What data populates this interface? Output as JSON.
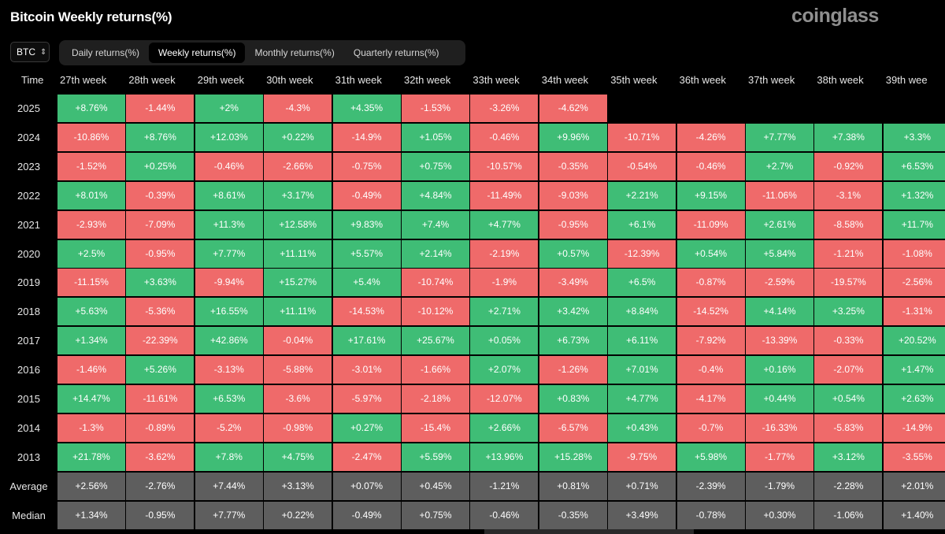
{
  "title": "Bitcoin Weekly returns(%)",
  "logo": "coinglass",
  "coin_select": {
    "value": "BTC",
    "icon": "updown-chevron-icon"
  },
  "tabs": [
    {
      "label": "Daily returns(%)",
      "active": false
    },
    {
      "label": "Weekly returns(%)",
      "active": true
    },
    {
      "label": "Monthly returns(%)",
      "active": false
    },
    {
      "label": "Quarterly returns(%)",
      "active": false
    }
  ],
  "colors": {
    "positive": "#3fbd76",
    "negative": "#ef6a6a",
    "summary": "#5e5e5e",
    "background": "#000000"
  },
  "table": {
    "time_header": "Time",
    "columns": [
      "27th week",
      "28th week",
      "29th week",
      "30th week",
      "31th week",
      "32th week",
      "33th week",
      "34th week",
      "35th week",
      "36th week",
      "37th week",
      "38th week",
      "39th wee"
    ],
    "rows": [
      {
        "label": "2025",
        "values": [
          "+8.76%",
          "-1.44%",
          "+2%",
          "-4.3%",
          "+4.35%",
          "-1.53%",
          "-3.26%",
          "-4.62%",
          "",
          "",
          "",
          "",
          ""
        ]
      },
      {
        "label": "2024",
        "values": [
          "-10.86%",
          "+8.76%",
          "+12.03%",
          "+0.22%",
          "-14.9%",
          "+1.05%",
          "-0.46%",
          "+9.96%",
          "-10.71%",
          "-4.26%",
          "+7.77%",
          "+7.38%",
          "+3.3%"
        ]
      },
      {
        "label": "2023",
        "values": [
          "-1.52%",
          "+0.25%",
          "-0.46%",
          "-2.66%",
          "-0.75%",
          "+0.75%",
          "-10.57%",
          "-0.35%",
          "-0.54%",
          "-0.46%",
          "+2.7%",
          "-0.92%",
          "+6.53%"
        ]
      },
      {
        "label": "2022",
        "values": [
          "+8.01%",
          "-0.39%",
          "+8.61%",
          "+3.17%",
          "-0.49%",
          "+4.84%",
          "-11.49%",
          "-9.03%",
          "+2.21%",
          "+9.15%",
          "-11.06%",
          "-3.1%",
          "+1.32%"
        ]
      },
      {
        "label": "2021",
        "values": [
          "-2.93%",
          "-7.09%",
          "+11.3%",
          "+12.58%",
          "+9.83%",
          "+7.4%",
          "+4.77%",
          "-0.95%",
          "+6.1%",
          "-11.09%",
          "+2.61%",
          "-8.58%",
          "+11.7%"
        ]
      },
      {
        "label": "2020",
        "values": [
          "+2.5%",
          "-0.95%",
          "+7.77%",
          "+11.11%",
          "+5.57%",
          "+2.14%",
          "-2.19%",
          "+0.57%",
          "-12.39%",
          "+0.54%",
          "+5.84%",
          "-1.21%",
          "-1.08%"
        ]
      },
      {
        "label": "2019",
        "values": [
          "-11.15%",
          "+3.63%",
          "-9.94%",
          "+15.27%",
          "+5.4%",
          "-10.74%",
          "-1.9%",
          "-3.49%",
          "+6.5%",
          "-0.87%",
          "-2.59%",
          "-19.57%",
          "-2.56%"
        ]
      },
      {
        "label": "2018",
        "values": [
          "+5.63%",
          "-5.36%",
          "+16.55%",
          "+11.11%",
          "-14.53%",
          "-10.12%",
          "+2.71%",
          "+3.42%",
          "+8.84%",
          "-14.52%",
          "+4.14%",
          "+3.25%",
          "-1.31%"
        ]
      },
      {
        "label": "2017",
        "values": [
          "+1.34%",
          "-22.39%",
          "+42.86%",
          "-0.04%",
          "+17.61%",
          "+25.67%",
          "+0.05%",
          "+6.73%",
          "+6.11%",
          "-7.92%",
          "-13.39%",
          "-0.33%",
          "+20.52%"
        ]
      },
      {
        "label": "2016",
        "values": [
          "-1.46%",
          "+5.26%",
          "-3.13%",
          "-5.88%",
          "-3.01%",
          "-1.66%",
          "+2.07%",
          "-1.26%",
          "+7.01%",
          "-0.4%",
          "+0.16%",
          "-2.07%",
          "+1.47%"
        ]
      },
      {
        "label": "2015",
        "values": [
          "+14.47%",
          "-11.61%",
          "+6.53%",
          "-3.6%",
          "-5.97%",
          "-2.18%",
          "-12.07%",
          "+0.83%",
          "+4.77%",
          "-4.17%",
          "+0.44%",
          "+0.54%",
          "+2.63%"
        ]
      },
      {
        "label": "2014",
        "values": [
          "-1.3%",
          "-0.89%",
          "-5.2%",
          "-0.98%",
          "+0.27%",
          "-15.4%",
          "+2.66%",
          "-6.57%",
          "+0.43%",
          "-0.7%",
          "-16.33%",
          "-5.83%",
          "-14.9%"
        ]
      },
      {
        "label": "2013",
        "values": [
          "+21.78%",
          "-3.62%",
          "+7.8%",
          "+4.75%",
          "-2.47%",
          "+5.59%",
          "+13.96%",
          "+15.28%",
          "-9.75%",
          "+5.98%",
          "-1.77%",
          "+3.12%",
          "-3.55%"
        ]
      }
    ],
    "summary_rows": [
      {
        "label": "Average",
        "values": [
          "+2.56%",
          "-2.76%",
          "+7.44%",
          "+3.13%",
          "+0.07%",
          "+0.45%",
          "-1.21%",
          "+0.81%",
          "+0.71%",
          "-2.39%",
          "-1.79%",
          "-2.28%",
          "+2.01%"
        ]
      },
      {
        "label": "Median",
        "values": [
          "+1.34%",
          "-0.95%",
          "+7.77%",
          "+0.22%",
          "-0.49%",
          "+0.75%",
          "-0.46%",
          "-0.35%",
          "+3.49%",
          "-0.78%",
          "+0.30%",
          "-1.06%",
          "+1.40%"
        ]
      }
    ]
  }
}
